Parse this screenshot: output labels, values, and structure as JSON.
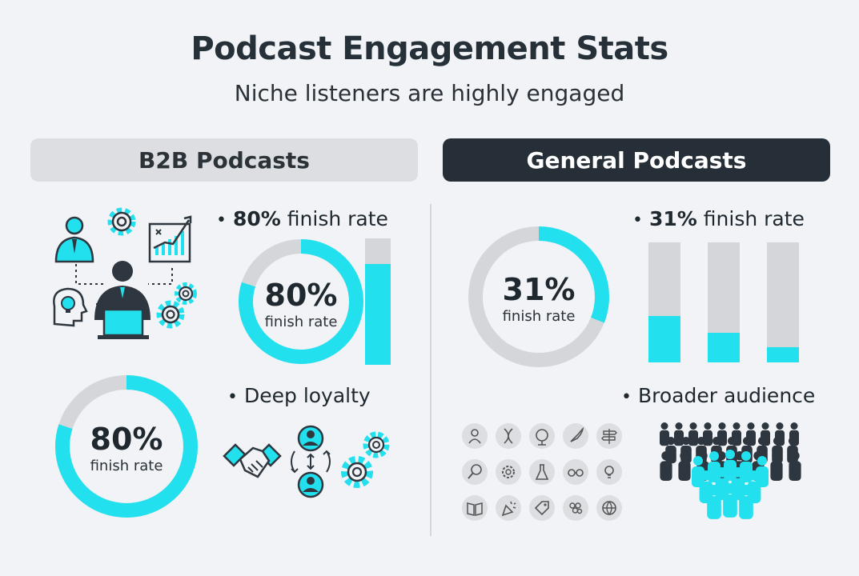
{
  "header": {
    "title": "Podcast Engagement Stats",
    "subtitle": "Niche listeners are highly engaged"
  },
  "b2b": {
    "label": "B2B Podcasts",
    "bullet_finish_value": "80%",
    "bullet_finish_text": "finish rate",
    "donut_top": {
      "pct": "80%",
      "label": "finish rate",
      "value": 0.8
    },
    "donut_bottom": {
      "pct": "80%",
      "label": "finish rate",
      "value": 0.8
    },
    "bar_level": 0.8,
    "bullet_loyalty": "Deep loyalty"
  },
  "general": {
    "label": "General Podcasts",
    "bullet_finish_value": "31%",
    "bullet_finish_text": "finish rate",
    "donut": {
      "pct": "31%",
      "label": "finish rate",
      "value": 0.31
    },
    "bar_levels": [
      0.39,
      0.25,
      0.13
    ],
    "bullet_audience": "Broader audience"
  },
  "colors": {
    "accent": "#22e0ee",
    "track": "#d4d6da",
    "dark": "#262f37",
    "icon_dark": "#2e373f"
  },
  "icons": {
    "b2b_illustration": [
      "professional-person-icon",
      "gear-icon",
      "chart-board-icon",
      "idea-head-icon",
      "laptop-worker-icon",
      "gears-icon"
    ],
    "loyalty_illustration": [
      "handshake-icon",
      "user-exchange-icon",
      "gears-icon"
    ],
    "interest_grid": [
      "person-icon",
      "dna-icon",
      "globe-icon",
      "rocket-icon",
      "signpost-icon",
      "magnifier-icon",
      "gear-head-icon",
      "flask-icon",
      "glasses-icon",
      "lightbulb-icon",
      "book-icon",
      "party-popper-icon",
      "tag-icon",
      "grapes-icon",
      "web-globe-icon"
    ],
    "crowd": "crowd-icon"
  }
}
